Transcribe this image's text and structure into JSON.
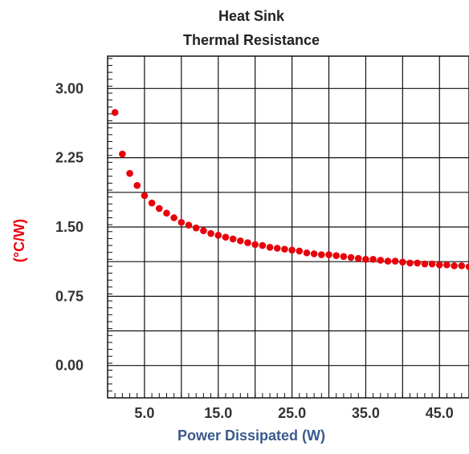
{
  "chart_data": {
    "type": "scatter",
    "title": "Heat Sink",
    "subtitle": "Thermal Resistance",
    "xlabel": "Power Dissipated (W)",
    "ylabel": "(°C/W)",
    "xlim": [
      0,
      49
    ],
    "ylim": [
      -0.35,
      3.35
    ],
    "xticks": [
      5,
      10,
      15,
      20,
      25,
      30,
      35,
      40,
      45
    ],
    "xtick_labels": [
      "5.0",
      "",
      "15.0",
      "",
      "25.0",
      "",
      "35.0",
      "",
      "45.0"
    ],
    "yticks": [
      0,
      0.375,
      0.75,
      1.125,
      1.5,
      1.875,
      2.25,
      2.625,
      3.0
    ],
    "ytick_labels": [
      "0.00",
      "",
      "0.75",
      "",
      "1.50",
      "",
      "2.25",
      "",
      "3.00"
    ],
    "grid": true,
    "marker_color": "#e8000b",
    "series": [
      {
        "x": [
          1,
          2,
          3,
          4,
          5,
          6,
          7,
          8,
          9,
          10,
          11,
          12,
          13,
          14,
          15,
          16,
          17,
          18,
          19,
          20,
          21,
          22,
          23,
          24,
          25,
          26,
          27,
          28,
          29,
          30,
          31,
          32,
          33,
          34,
          35,
          36,
          37,
          38,
          39,
          40,
          41,
          42,
          43,
          44,
          45,
          46,
          47,
          48,
          49
        ],
        "y": [
          2.74,
          2.29,
          2.08,
          1.95,
          1.84,
          1.76,
          1.7,
          1.65,
          1.6,
          1.55,
          1.52,
          1.49,
          1.46,
          1.43,
          1.41,
          1.39,
          1.37,
          1.35,
          1.33,
          1.31,
          1.3,
          1.28,
          1.27,
          1.26,
          1.25,
          1.24,
          1.22,
          1.21,
          1.2,
          1.2,
          1.19,
          1.18,
          1.17,
          1.16,
          1.15,
          1.15,
          1.14,
          1.13,
          1.13,
          1.12,
          1.11,
          1.11,
          1.1,
          1.1,
          1.09,
          1.09,
          1.08,
          1.08,
          1.07
        ]
      }
    ]
  }
}
